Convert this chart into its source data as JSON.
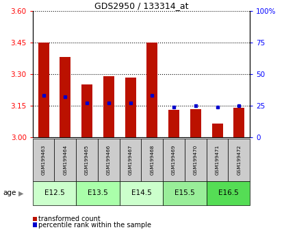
{
  "title": "GDS2950 / 133314_at",
  "samples": [
    "GSM199463",
    "GSM199464",
    "GSM199465",
    "GSM199466",
    "GSM199467",
    "GSM199468",
    "GSM199469",
    "GSM199470",
    "GSM199471",
    "GSM199472"
  ],
  "transformed_count": [
    3.45,
    3.38,
    3.25,
    3.29,
    3.285,
    3.45,
    3.13,
    3.135,
    3.065,
    3.14
  ],
  "percentile_rank": [
    33,
    32,
    27,
    27,
    27,
    33,
    24,
    25,
    24,
    25
  ],
  "age_groups": [
    {
      "label": "E12.5",
      "start": 0,
      "end": 2,
      "color": "#ccffcc"
    },
    {
      "label": "E13.5",
      "start": 2,
      "end": 4,
      "color": "#aaffaa"
    },
    {
      "label": "E14.5",
      "start": 4,
      "end": 6,
      "color": "#ccffcc"
    },
    {
      "label": "E15.5",
      "start": 6,
      "end": 8,
      "color": "#99ee99"
    },
    {
      "label": "E16.5",
      "start": 8,
      "end": 10,
      "color": "#55dd55"
    }
  ],
  "ylim_left": [
    3.0,
    3.6
  ],
  "ylim_right": [
    0,
    100
  ],
  "yticks_left": [
    3.0,
    3.15,
    3.3,
    3.45,
    3.6
  ],
  "yticks_right": [
    0,
    25,
    50,
    75,
    100
  ],
  "ytick_labels_right": [
    "0",
    "25",
    "50",
    "75",
    "100%"
  ],
  "bar_color": "#bb1100",
  "dot_color": "#0000cc",
  "bar_width": 0.5,
  "base_value": 3.0,
  "legend_labels": [
    "transformed count",
    "percentile rank within the sample"
  ],
  "legend_colors": [
    "#bb1100",
    "#0000cc"
  ],
  "sample_box_color": "#cccccc",
  "age_arrow_label": "age"
}
